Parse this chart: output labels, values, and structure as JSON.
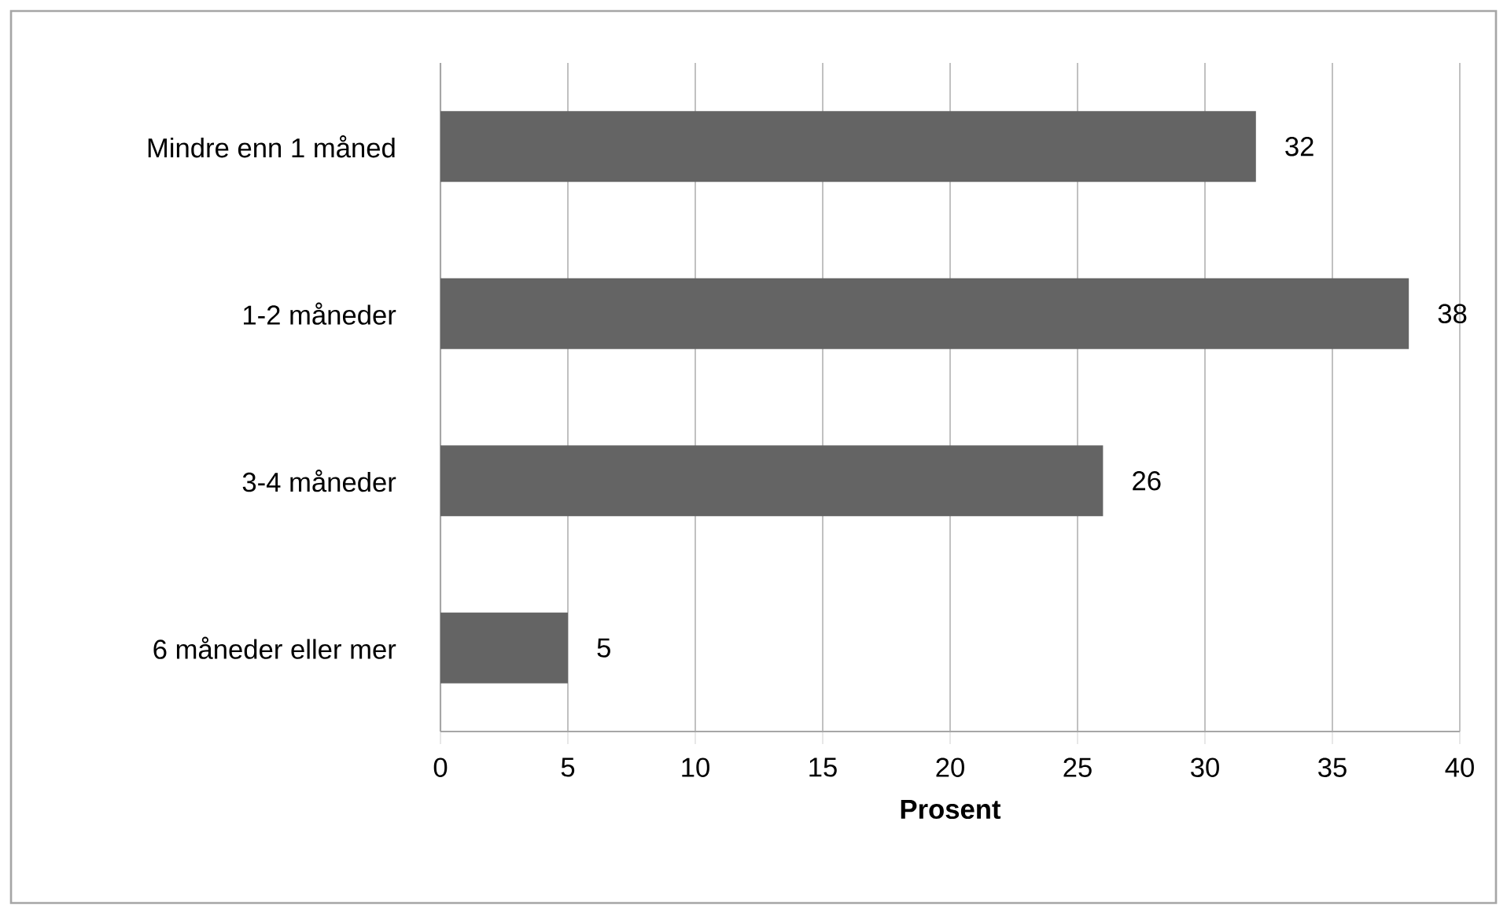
{
  "chart_data": {
    "type": "bar",
    "orientation": "horizontal",
    "categories": [
      "Mindre enn 1 måned",
      "1-2 måneder",
      "3-4 måneder",
      "6 måneder eller mer"
    ],
    "values": [
      32,
      38,
      26,
      5
    ],
    "color": "#646464",
    "xlabel": "Prosent",
    "xlim": [
      0,
      40
    ],
    "xticks": [
      0,
      5,
      10,
      15,
      20,
      25,
      30,
      35,
      40
    ],
    "grid": "x",
    "data_labels": true
  }
}
